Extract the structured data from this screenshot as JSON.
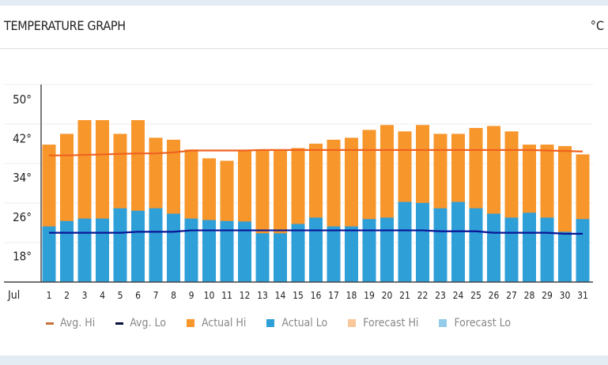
{
  "header": {
    "title": "TEMPERATURE GRAPH",
    "unit": "°C"
  },
  "colors": {
    "avg_hi": "#f0621e",
    "avg_lo": "#0a1696",
    "actual_hi": "#f7962b",
    "actual_lo": "#2f9fd8",
    "forecast_hi": "#f9c89a",
    "forecast_lo": "#94cde9"
  },
  "chart_data": {
    "type": "bar",
    "title": "TEMPERATURE GRAPH",
    "month_label": "Jul",
    "categories": [
      "1",
      "2",
      "3",
      "4",
      "5",
      "6",
      "7",
      "8",
      "9",
      "10",
      "11",
      "12",
      "13",
      "14",
      "15",
      "16",
      "17",
      "18",
      "19",
      "20",
      "21",
      "22",
      "23",
      "24",
      "25",
      "26",
      "27",
      "28",
      "29",
      "30",
      "31"
    ],
    "y_ticks": [
      {
        "value": 50,
        "label": "50°"
      },
      {
        "value": 42,
        "label": "42°"
      },
      {
        "value": 34,
        "label": "34°"
      },
      {
        "value": 26,
        "label": "26°"
      },
      {
        "value": 18,
        "label": "18°"
      }
    ],
    "ylim": [
      13,
      53
    ],
    "grid": true,
    "legend_position": "bottom",
    "series": [
      {
        "name": "Actual Hi",
        "kind": "bar",
        "values": [
          40.8,
          43,
          45.8,
          45.8,
          43,
          45.8,
          42.2,
          41.8,
          39.8,
          38,
          37.5,
          39.6,
          39.6,
          39.6,
          40.1,
          41,
          41.8,
          42.2,
          43.8,
          44.8,
          43.5,
          44.8,
          43,
          43,
          44.2,
          44.6,
          43.5,
          40.8,
          40.8,
          40.5,
          38.8
        ]
      },
      {
        "name": "Actual Lo",
        "kind": "bar",
        "values": [
          24.1,
          25.2,
          25.7,
          25.7,
          27.8,
          27.3,
          27.8,
          26.7,
          25.7,
          25.4,
          25.2,
          25.1,
          22.7,
          22.7,
          24.6,
          25.9,
          24.1,
          24.1,
          25.6,
          25.9,
          29.1,
          28.9,
          27.8,
          29.1,
          27.8,
          26.7,
          25.9,
          26.9,
          25.9,
          23,
          25.6
        ]
      },
      {
        "name": "Avg. Hi",
        "kind": "line",
        "values": [
          38.6,
          38.6,
          38.7,
          38.8,
          38.9,
          39,
          39,
          39.2,
          39.6,
          39.6,
          39.6,
          39.6,
          39.7,
          39.7,
          39.7,
          39.7,
          39.7,
          39.7,
          39.7,
          39.7,
          39.7,
          39.7,
          39.7,
          39.7,
          39.7,
          39.7,
          39.7,
          39.7,
          39.6,
          39.5,
          39.4
        ]
      },
      {
        "name": "Avg. Lo",
        "kind": "line",
        "values": [
          22.8,
          22.8,
          22.8,
          22.8,
          22.8,
          23,
          23,
          23,
          23.3,
          23.3,
          23.3,
          23.3,
          23.3,
          23.3,
          23.3,
          23.3,
          23.3,
          23.3,
          23.3,
          23.3,
          23.3,
          23.3,
          23.1,
          23.1,
          23.1,
          22.8,
          22.8,
          22.8,
          22.8,
          22.6,
          22.6
        ]
      }
    ],
    "legend": [
      "Avg. Hi",
      "Avg. Lo",
      "Actual Hi",
      "Actual Lo",
      "Forecast Hi",
      "Forecast Lo"
    ]
  }
}
